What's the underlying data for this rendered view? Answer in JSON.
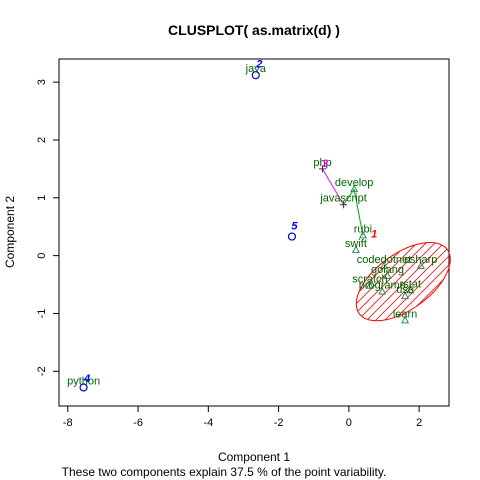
{
  "chart_data": {
    "type": "scatter",
    "title": "CLUSPLOT( as.matrix(d) )",
    "xlabel": "Component 1",
    "ylabel": "Component 2",
    "subtitle": "These two components explain 37.5 % of the point variability.",
    "xlim": [
      -8.25,
      2.85
    ],
    "ylim": [
      -2.6,
      3.4
    ],
    "x_ticks": [
      -8,
      -6,
      -4,
      -2,
      0,
      2
    ],
    "y_ticks": [
      -2,
      -1,
      0,
      1,
      2,
      3
    ],
    "grid": false,
    "points": [
      {
        "label": "java",
        "x": -2.65,
        "y": 3.12,
        "marker": "circle",
        "cluster": 2
      },
      {
        "label": "php",
        "x": -0.75,
        "y": 1.5,
        "marker": "plus",
        "cluster": 3
      },
      {
        "label": "develop",
        "x": 0.15,
        "y": 1.15,
        "marker": "triangle",
        "cluster": 1
      },
      {
        "label": "javascript",
        "x": -0.15,
        "y": 0.88,
        "marker": "plus",
        "cluster": 3
      },
      {
        "label": "rubi",
        "x": 0.4,
        "y": 0.35,
        "marker": "triangle",
        "cluster": 1
      },
      {
        "label": "swift",
        "x": 0.2,
        "y": 0.1,
        "marker": "triangle",
        "cluster": 1
      },
      {
        "label": "codedotnet",
        "x": 1.0,
        "y": -0.18,
        "marker": "triangle",
        "cluster": 1
      },
      {
        "label": "csharp",
        "x": 2.05,
        "y": -0.18,
        "marker": "triangle",
        "cluster": 1
      },
      {
        "label": "golang",
        "x": 1.1,
        "y": -0.35,
        "marker": "triangle",
        "cluster": 1
      },
      {
        "label": "scratch",
        "x": 0.6,
        "y": -0.52,
        "marker": "triangle",
        "cluster": 1
      },
      {
        "label": "rstat",
        "x": 1.75,
        "y": -0.6,
        "marker": "triangle",
        "cluster": 1
      },
      {
        "label": "programe",
        "x": 0.95,
        "y": -0.62,
        "marker": "triangle",
        "cluster": 1
      },
      {
        "label": "use",
        "x": 1.6,
        "y": -0.7,
        "marker": "triangle",
        "cluster": 1
      },
      {
        "label": "learn",
        "x": 1.6,
        "y": -1.12,
        "marker": "triangle",
        "cluster": 1
      },
      {
        "label": "python",
        "x": -7.55,
        "y": -2.28,
        "marker": "circle",
        "cluster": 4
      },
      {
        "label": "",
        "x": -1.62,
        "y": 0.33,
        "marker": "circle",
        "cluster": 5
      }
    ],
    "clusters": [
      {
        "id": "1",
        "center": [
          0.72,
          0.38
        ],
        "color": "#ff0000"
      },
      {
        "id": "2",
        "center": [
          -2.55,
          3.32
        ],
        "color": "#0000ff"
      },
      {
        "id": "3",
        "center": [
          -0.68,
          1.6
        ],
        "color": "#ff00ff"
      },
      {
        "id": "4",
        "center": [
          -7.45,
          -2.12
        ],
        "color": "#0000ff"
      },
      {
        "id": "5",
        "center": [
          -1.55,
          0.52
        ],
        "color": "#0000ff"
      }
    ],
    "ellipses": [
      {
        "cluster": "1",
        "cx": 1.55,
        "cy": -0.45,
        "rx": 1.55,
        "ry": 0.48,
        "angle_deg": -36,
        "color": "#ff0000",
        "shaded": true
      }
    ],
    "connectors": [
      {
        "from": [
          -0.75,
          1.5
        ],
        "to": [
          -0.15,
          0.88
        ],
        "color": "#ff00ff"
      },
      {
        "from": [
          -0.15,
          0.88
        ],
        "to": [
          0.15,
          1.15
        ],
        "color": "#00aa00"
      },
      {
        "from": [
          0.15,
          1.15
        ],
        "to": [
          0.4,
          0.35
        ],
        "color": "#00aa00"
      }
    ]
  }
}
